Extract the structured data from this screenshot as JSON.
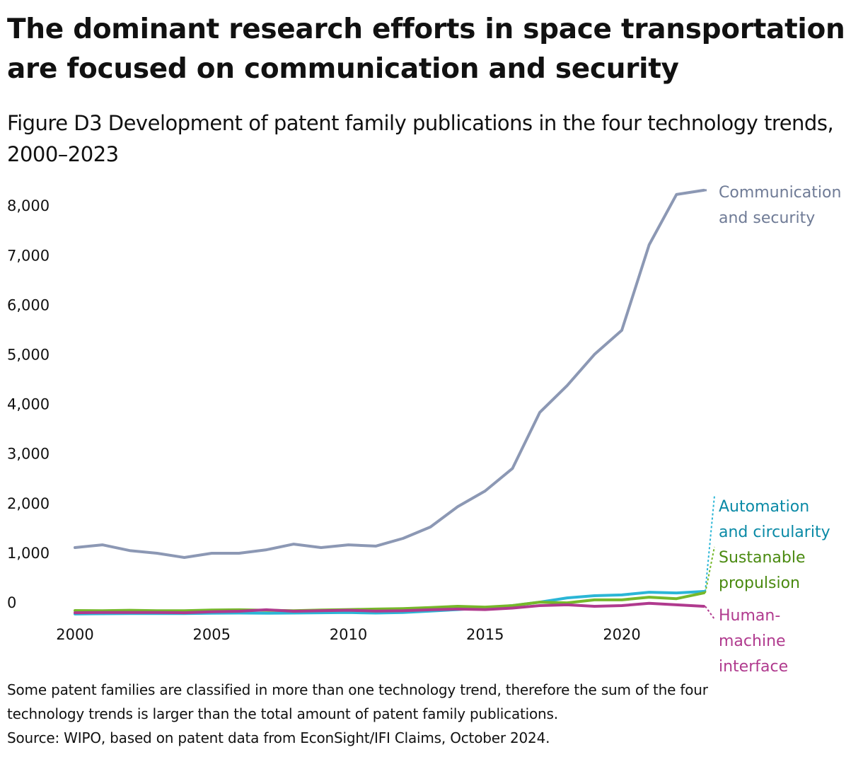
{
  "header": {
    "title": "The dominant research efforts in space transportation are focused on communication and security",
    "subtitle": "Figure D3 Development of patent family publications in the four technology trends, 2000–2023"
  },
  "chart_data": {
    "type": "line",
    "title": "The dominant research efforts in space transportation are focused on communication and security",
    "subtitle": "Figure D3 Development of patent family publications in the four technology trends, 2000–2023",
    "xlabel": "",
    "ylabel": "",
    "x": [
      2000,
      2001,
      2002,
      2003,
      2004,
      2005,
      2006,
      2007,
      2008,
      2009,
      2010,
      2011,
      2012,
      2013,
      2014,
      2015,
      2016,
      2017,
      2018,
      2019,
      2020,
      2021,
      2022,
      2023
    ],
    "x_ticks": [
      "2000",
      "2005",
      "2010",
      "2015",
      "2020"
    ],
    "x_tick_values": [
      2000,
      2005,
      2010,
      2015,
      2020
    ],
    "y_ticks": [
      "0",
      "1,000",
      "2,000",
      "3,000",
      "4,000",
      "5,000",
      "6,000",
      "7,000",
      "8,000"
    ],
    "y_tick_values": [
      0,
      1000,
      2000,
      3000,
      4000,
      5000,
      6000,
      7000,
      8000
    ],
    "ylim": [
      0,
      8600
    ],
    "xlim": [
      2000,
      2023
    ],
    "grid": false,
    "legend": "direct labels at right end of lines",
    "series": [
      {
        "name": "Communication and security",
        "label_lines": [
          "Communication",
          "and security"
        ],
        "color": "#8c98b4",
        "label_color": "#6f7b96",
        "values": [
          1370,
          1425,
          1310,
          1255,
          1170,
          1255,
          1255,
          1325,
          1440,
          1370,
          1425,
          1400,
          1555,
          1785,
          2195,
          2510,
          2965,
          4095,
          4635,
          5265,
          5750,
          7475,
          8490,
          8575
        ]
      },
      {
        "name": "Automation and circularity",
        "label_lines": [
          "Automation",
          "and circularity"
        ],
        "color": "#2bb6d6",
        "label_color": "#0a8aa6",
        "values": [
          30,
          35,
          40,
          40,
          40,
          45,
          50,
          45,
          50,
          55,
          60,
          50,
          60,
          90,
          120,
          155,
          200,
          270,
          355,
          400,
          415,
          470,
          455,
          485
        ]
      },
      {
        "name": "Sustanable propulsion",
        "label_lines": [
          "Sustanable",
          "propulsion"
        ],
        "color": "#76b82a",
        "label_color": "#4a8a10",
        "values": [
          100,
          95,
          105,
          95,
          95,
          110,
          115,
          105,
          95,
          110,
          120,
          130,
          140,
          160,
          185,
          170,
          200,
          270,
          255,
          315,
          315,
          370,
          340,
          455
        ]
      },
      {
        "name": "Human-machine interface",
        "label_lines": [
          "Human-",
          "machine",
          "interface"
        ],
        "color": "#b03a8e",
        "label_color": "#b03a8e",
        "values": [
          55,
          60,
          60,
          60,
          55,
          75,
          85,
          115,
          85,
          95,
          105,
          90,
          95,
          115,
          130,
          120,
          150,
          200,
          215,
          185,
          200,
          245,
          215,
          185
        ]
      }
    ]
  },
  "footer": {
    "note_line1": "Some patent families are classified in more than one technology trend, therefore the sum of the four",
    "note_line2": "technology trends is larger than the total amount of patent family publications.",
    "source": "Source: WIPO, based on patent data from EconSight/IFI Claims, October 2024."
  }
}
